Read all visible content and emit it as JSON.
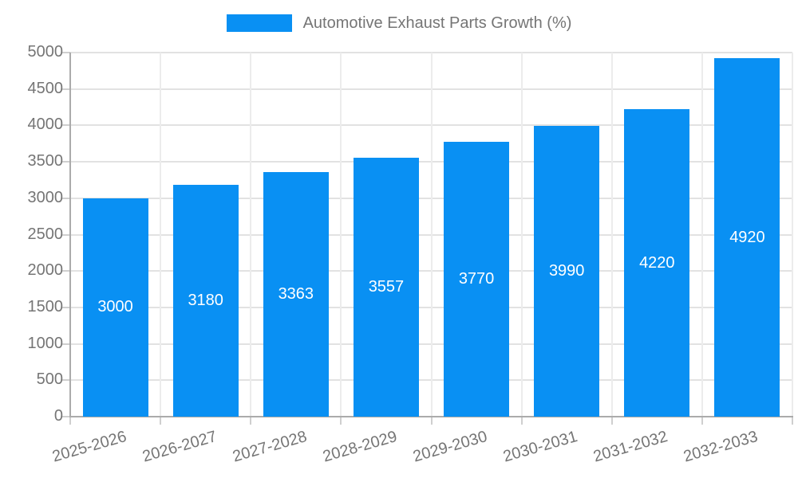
{
  "chart_data": {
    "type": "bar",
    "title": "Automotive Exhaust Parts Growth (%)",
    "categories": [
      "2025-2026",
      "2026-2027",
      "2027-2028",
      "2028-2029",
      "2029-2030",
      "2030-2031",
      "2031-2032",
      "2032-2033"
    ],
    "values": [
      3000,
      3180,
      3363,
      3557,
      3770,
      3990,
      4220,
      4920
    ],
    "xlabel": "",
    "ylabel": "",
    "ylim": [
      0,
      5000
    ],
    "ytick_step": 500,
    "yticks": [
      0,
      500,
      1000,
      1500,
      2000,
      2500,
      3000,
      3500,
      4000,
      4500,
      5000
    ],
    "grid": true,
    "legend_position": "top-center",
    "value_labels": "inside-center",
    "colors": {
      "bar": "#0990f3",
      "bar_label": "#ffffff",
      "axis_text": "#757575",
      "grid_line_h": "#e2e2e2",
      "grid_line_v": "#ececec",
      "axis_line": "#ababab",
      "tick_mark": "#cfcfcf"
    }
  }
}
